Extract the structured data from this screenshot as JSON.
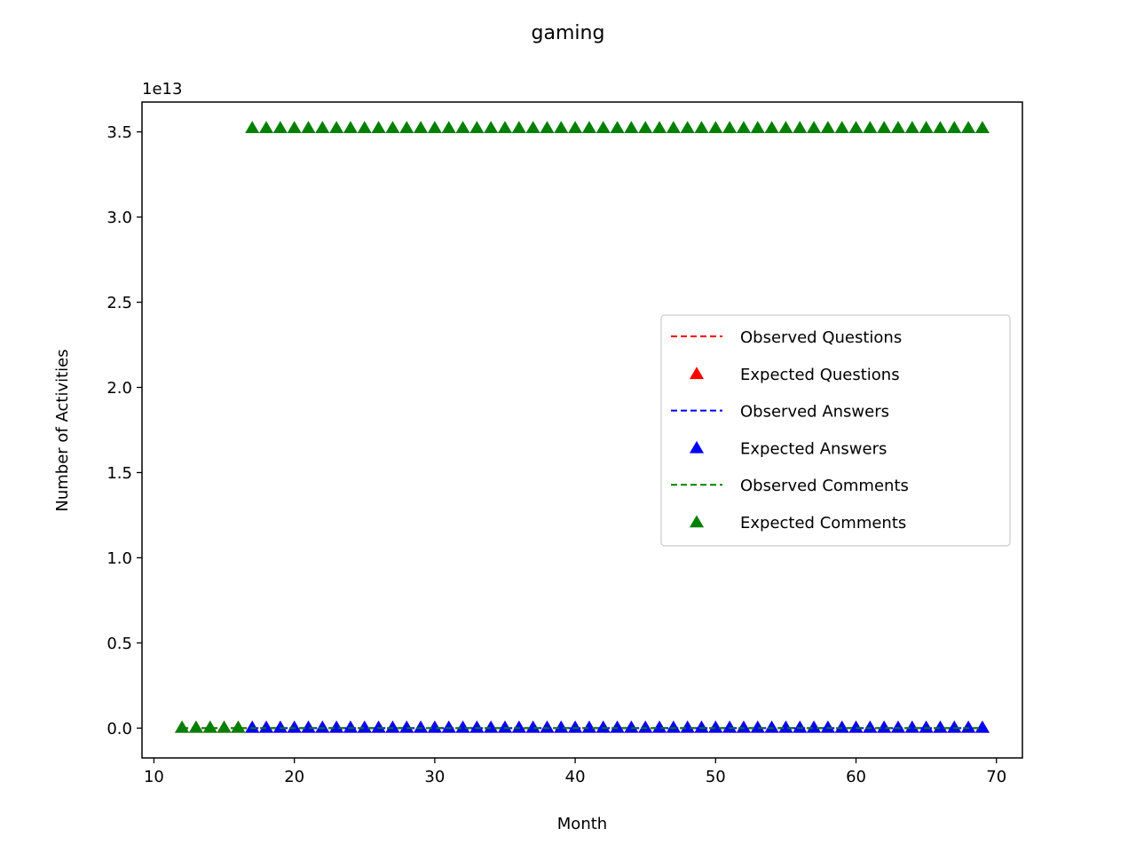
{
  "chart_data": {
    "type": "scatter",
    "title": "gaming",
    "xlabel": "Month",
    "ylabel": "Number of Activities",
    "y_offset_text": "1e13",
    "xlim": [
      9.15,
      71.85
    ],
    "ylim": [
      -0.175,
      3.675
    ],
    "y_scale_note": "values in units of 1e13",
    "xticks": [
      10,
      20,
      30,
      40,
      50,
      60,
      70
    ],
    "xtick_labels": [
      "10",
      "20",
      "30",
      "40",
      "50",
      "60",
      "70"
    ],
    "yticks": [
      0.0,
      0.5,
      1.0,
      1.5,
      2.0,
      2.5,
      3.0,
      3.5
    ],
    "ytick_labels": [
      "0.0",
      "0.5",
      "1.0",
      "1.5",
      "2.0",
      "2.5",
      "3.0",
      "3.5"
    ],
    "grid": false,
    "legend_position": "center-right",
    "series": [
      {
        "name": "Observed Questions",
        "kind": "line",
        "style": "dashed",
        "color": "#ff0000",
        "x_start": 12,
        "x_end": 69,
        "y": 0
      },
      {
        "name": "Expected Questions",
        "kind": "marker",
        "marker": "triangle",
        "color": "#ff0000",
        "x_start": 12,
        "x_end": 69,
        "y": 0
      },
      {
        "name": "Observed Answers",
        "kind": "line",
        "style": "dashed",
        "color": "#0000ff",
        "x_start": 17,
        "x_end": 69,
        "y": 0
      },
      {
        "name": "Expected Answers",
        "kind": "marker",
        "marker": "triangle",
        "color": "#0000ff",
        "x_start": 17,
        "x_end": 69,
        "y": 0
      },
      {
        "name": "Observed Comments",
        "kind": "line",
        "style": "dashed",
        "color": "#008000",
        "x_start": 12,
        "x_end": 69,
        "y": 0
      },
      {
        "name": "Expected Comments",
        "kind": "marker",
        "marker": "triangle",
        "color": "#008000",
        "segments": [
          {
            "x_start": 12,
            "x_end": 16,
            "y": 0
          },
          {
            "x_start": 17,
            "x_end": 69,
            "y": 3.52
          }
        ]
      }
    ]
  }
}
